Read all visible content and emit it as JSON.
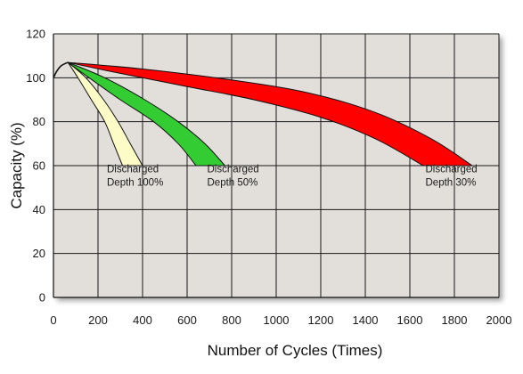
{
  "chart_data": {
    "type": "area",
    "title": "",
    "xlabel": "Number of Cycles (Times)",
    "ylabel": "Capacity (%)",
    "xlim": [
      0,
      2000
    ],
    "ylim": [
      0,
      120
    ],
    "x_ticks": [
      0,
      200,
      400,
      600,
      800,
      1000,
      1200,
      1400,
      1600,
      1800,
      2000
    ],
    "y_ticks": [
      0,
      20,
      40,
      60,
      80,
      100,
      120
    ],
    "grid": true,
    "background_color": "#e2dfdb",
    "series": [
      {
        "name": "Discharged Depth 100%",
        "label_lines": [
          "Discharged",
          "Depth 100%"
        ],
        "color": "#fdfcc6",
        "upper": [
          [
            65,
            107
          ],
          [
            110,
            100
          ],
          [
            170,
            90
          ],
          [
            230,
            80
          ],
          [
            270,
            70
          ],
          [
            310,
            60
          ]
        ],
        "lower": [
          [
            65,
            107
          ],
          [
            145,
            100
          ],
          [
            225,
            90
          ],
          [
            290,
            80
          ],
          [
            345,
            70
          ],
          [
            400,
            60
          ]
        ],
        "label_at": [
          240,
          57
        ]
      },
      {
        "name": "Discharged Depth 50%",
        "label_lines": [
          "Discharged",
          "Depth 50%"
        ],
        "color": "#33cc33",
        "upper": [
          [
            65,
            107
          ],
          [
            160,
            100
          ],
          [
            300,
            90
          ],
          [
            450,
            80
          ],
          [
            560,
            70
          ],
          [
            640,
            60
          ]
        ],
        "lower": [
          [
            65,
            107
          ],
          [
            230,
            100
          ],
          [
            410,
            90
          ],
          [
            560,
            80
          ],
          [
            680,
            70
          ],
          [
            770,
            60
          ]
        ],
        "label_at": [
          690,
          57
        ]
      },
      {
        "name": "Discharged Depth 30%",
        "label_lines": [
          "Discharged",
          "Depth 30%"
        ],
        "color": "#ff0000",
        "upper": [
          [
            65,
            107
          ],
          [
            300,
            102
          ],
          [
            600,
            96
          ],
          [
            900,
            90
          ],
          [
            1200,
            82
          ],
          [
            1450,
            72
          ],
          [
            1660,
            60
          ]
        ],
        "lower": [
          [
            65,
            107
          ],
          [
            400,
            104
          ],
          [
            800,
            99
          ],
          [
            1150,
            93
          ],
          [
            1450,
            84
          ],
          [
            1700,
            72
          ],
          [
            1880,
            60
          ]
        ],
        "label_at": [
          1670,
          57
        ]
      }
    ],
    "initial_rise": [
      [
        0,
        100
      ],
      [
        15,
        103
      ],
      [
        35,
        105.5
      ],
      [
        65,
        107
      ]
    ]
  }
}
